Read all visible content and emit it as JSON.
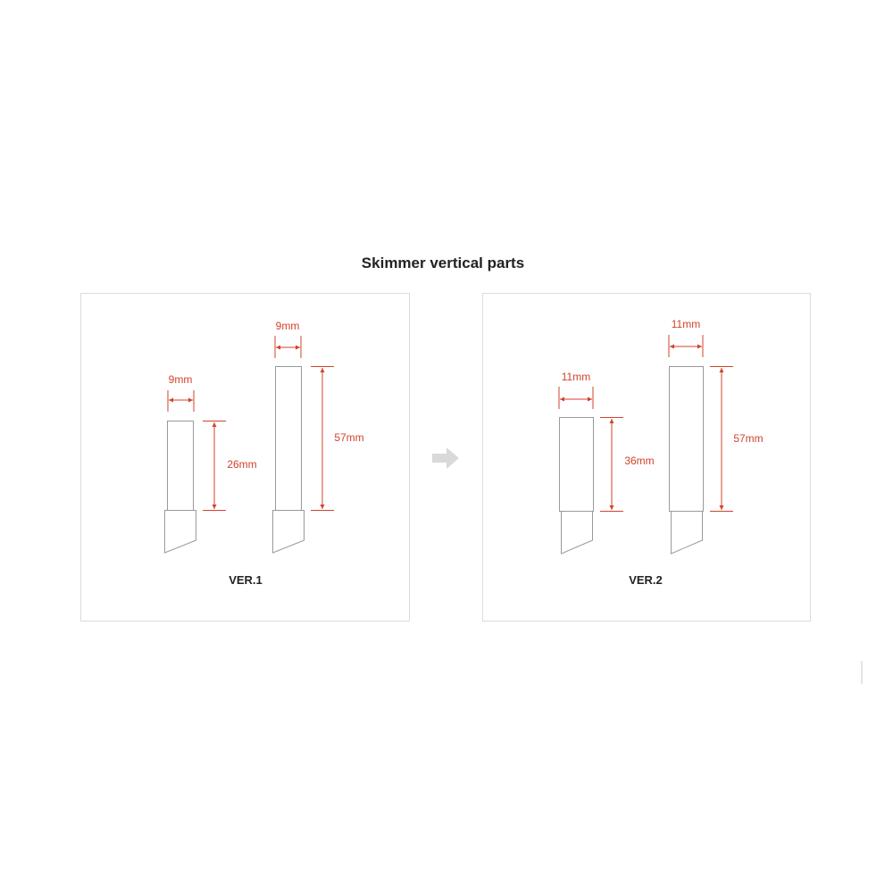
{
  "title": "Skimmer vertical parts",
  "colors": {
    "dimension": "#d0432b",
    "outline": "#9a9a9a",
    "arrow": "#d9d9d9"
  },
  "transition_icon": "right-arrow-icon",
  "versions": [
    {
      "label": "VER.1",
      "parts": [
        {
          "width_label": "9mm",
          "height_label": "26mm"
        },
        {
          "width_label": "9mm",
          "height_label": "57mm"
        }
      ]
    },
    {
      "label": "VER.2",
      "parts": [
        {
          "width_label": "11mm",
          "height_label": "36mm"
        },
        {
          "width_label": "11mm",
          "height_label": "57mm"
        }
      ]
    }
  ]
}
